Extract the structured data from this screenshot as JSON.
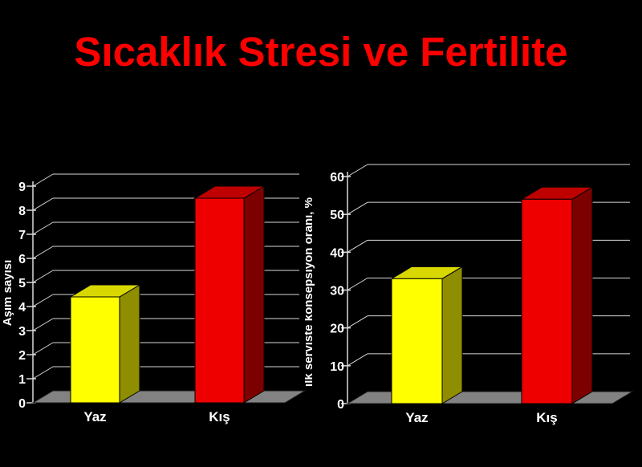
{
  "slide": {
    "title": "Sıcaklık Stresi ve Fertilite",
    "title_color": "#ff0000",
    "background_color": "#000000"
  },
  "styles": {
    "grid_color": "#d9d9d9",
    "axis_color": "#d9d9d9",
    "floor_color": "#828282",
    "text_color": "#ffffff",
    "bar_edge_color": "#000000"
  },
  "chart_data": [
    {
      "type": "bar",
      "variant": "3d-column",
      "title": "",
      "categories": [
        "Yaz",
        "Kış"
      ],
      "values": [
        4.4,
        8.5
      ],
      "xlabel": "",
      "ylabel": "Aşım sayısı",
      "ylim": [
        0,
        9
      ],
      "yticks": [
        0,
        1,
        2,
        3,
        4,
        5,
        6,
        7,
        8,
        9
      ],
      "grid": true,
      "legend": false,
      "bar_colors": [
        {
          "name": "Yaz",
          "front": "#ffff00",
          "top": "#d8d800",
          "side": "#8e8e00"
        },
        {
          "name": "Kış",
          "front": "#ee0000",
          "top": "#bf0000",
          "side": "#7d0000"
        }
      ]
    },
    {
      "type": "bar",
      "variant": "3d-column",
      "title": "",
      "categories": [
        "Yaz",
        "Kış"
      ],
      "values": [
        33,
        54
      ],
      "xlabel": "",
      "ylabel": "ilk serviste konsepsiyon oranı, %",
      "ylim": [
        0,
        60
      ],
      "yticks": [
        0,
        10,
        20,
        30,
        40,
        50,
        60
      ],
      "grid": true,
      "legend": false,
      "bar_colors": [
        {
          "name": "Yaz",
          "front": "#ffff00",
          "top": "#d8d800",
          "side": "#8e8e00"
        },
        {
          "name": "Kış",
          "front": "#ee0000",
          "top": "#bf0000",
          "side": "#7d0000"
        }
      ]
    }
  ]
}
